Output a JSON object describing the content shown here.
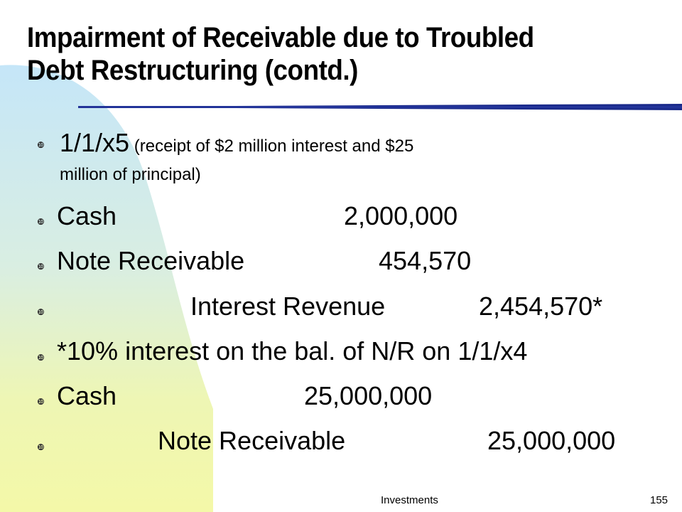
{
  "slide": {
    "title_line1": "Impairment of Receivable due to Troubled",
    "title_line2": "Debt Restructuring (contd.)",
    "bullet_glyph": "❿",
    "lines": {
      "l1_date": "1/1/x5",
      "l1_note": " (receipt of $2 million interest and $25",
      "l1_note2": "million of principal)",
      "l2_account": "Cash",
      "l2_amount": "2,000,000",
      "l3_account": "Note Receivable",
      "l3_amount": "454,570",
      "l4_account": "Interest Revenue",
      "l4_amount": "2,454,570*",
      "l5_text": "*10% interest on the bal. of N/R on 1/1/x4",
      "l6_account": "Cash",
      "l6_amount": "25,000,000",
      "l7_account": "Note Receivable",
      "l7_amount": "25,000,000"
    },
    "footer_label": "Investments",
    "page_number": "155",
    "colors": {
      "background_wave": "#c8e8f8",
      "background_green": "#eef7b0",
      "rule": "#1a2a8a"
    }
  }
}
